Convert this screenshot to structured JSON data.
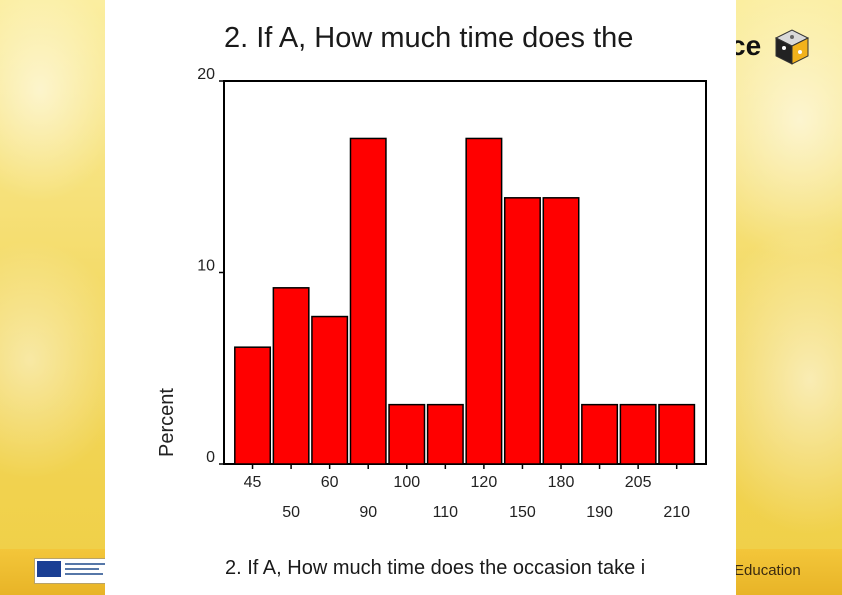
{
  "slide": {
    "title": "2. If A, How much time does the",
    "caption": "2. If A, How much time does the occasion take i",
    "footer_right": "Education",
    "logo_text": "ce"
  },
  "colors": {
    "bar_fill": "#ff0000",
    "bar_stroke": "#000000",
    "background": "#f6e27a"
  },
  "chart_data": {
    "type": "bar",
    "title": "",
    "xlabel": "",
    "ylabel": "Percent",
    "ylim": [
      0,
      20
    ],
    "yticks": [
      0,
      10,
      20
    ],
    "categories": [
      "45",
      "50",
      "60",
      "90",
      "100",
      "110",
      "120",
      "150",
      "180",
      "190",
      "205",
      "210"
    ],
    "values": [
      6.1,
      9.2,
      7.7,
      17.0,
      3.1,
      3.1,
      17.0,
      13.9,
      13.9,
      3.1,
      3.1,
      3.1
    ],
    "grid": false,
    "legend": "none"
  }
}
